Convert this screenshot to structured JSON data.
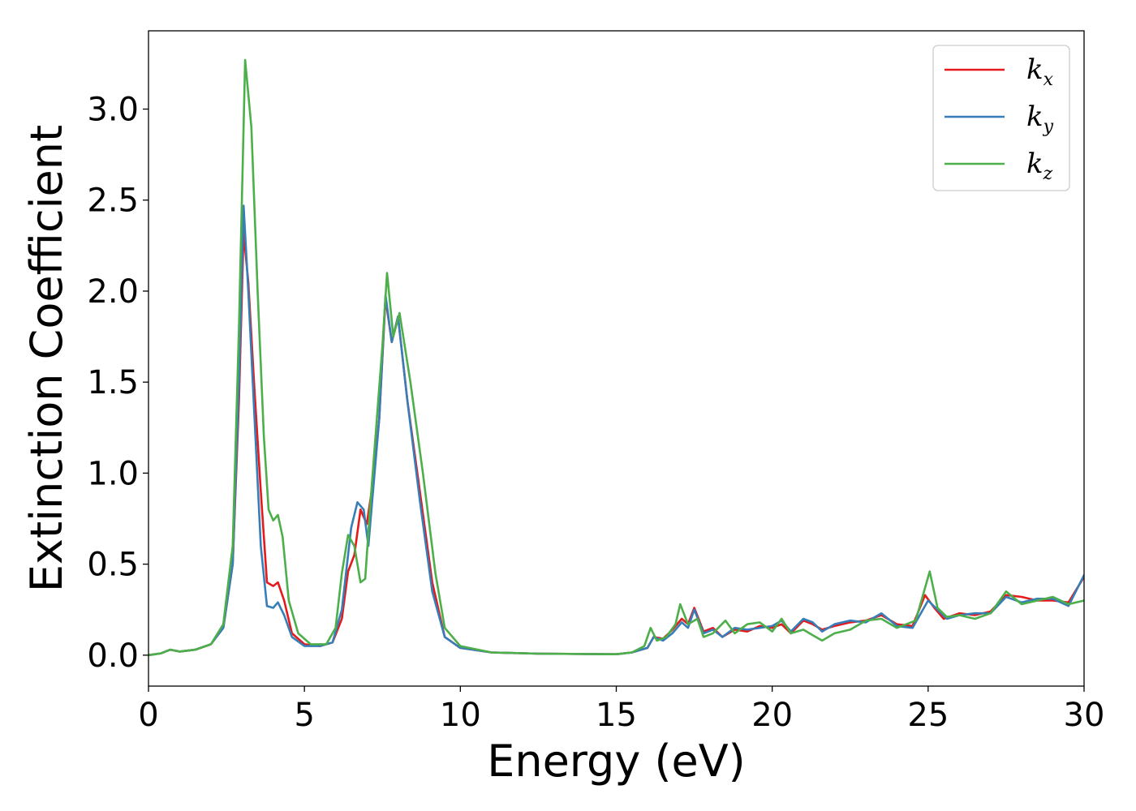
{
  "chart_data": {
    "type": "line",
    "xlabel": "Energy (eV)",
    "ylabel": "Extinction Coefficient",
    "xlim": [
      0,
      30
    ],
    "ylim": [
      -0.17,
      3.43
    ],
    "xticks": [
      "0",
      "5",
      "10",
      "15",
      "20",
      "25",
      "30"
    ],
    "yticks": [
      "0.0",
      "0.5",
      "1.0",
      "1.5",
      "2.0",
      "2.5",
      "3.0"
    ],
    "grid": false,
    "legend_placement": "top-right",
    "series": [
      {
        "name": "k",
        "subscript": "x",
        "color": "#e41a1c",
        "points": [
          [
            0,
            0.0
          ],
          [
            0.4,
            0.01
          ],
          [
            0.7,
            0.03
          ],
          [
            1.0,
            0.02
          ],
          [
            1.5,
            0.03
          ],
          [
            2.0,
            0.06
          ],
          [
            2.4,
            0.15
          ],
          [
            2.7,
            0.5
          ],
          [
            2.9,
            1.4
          ],
          [
            3.05,
            2.32
          ],
          [
            3.2,
            2.05
          ],
          [
            3.4,
            1.45
          ],
          [
            3.6,
            0.9
          ],
          [
            3.8,
            0.4
          ],
          [
            4.0,
            0.38
          ],
          [
            4.15,
            0.4
          ],
          [
            4.35,
            0.3
          ],
          [
            4.6,
            0.12
          ],
          [
            5.0,
            0.06
          ],
          [
            5.5,
            0.05
          ],
          [
            5.9,
            0.07
          ],
          [
            6.2,
            0.2
          ],
          [
            6.4,
            0.46
          ],
          [
            6.6,
            0.55
          ],
          [
            6.8,
            0.8
          ],
          [
            7.0,
            0.72
          ],
          [
            7.2,
            0.95
          ],
          [
            7.4,
            1.3
          ],
          [
            7.6,
            1.96
          ],
          [
            7.8,
            1.72
          ],
          [
            8.0,
            1.86
          ],
          [
            8.3,
            1.4
          ],
          [
            8.7,
            0.9
          ],
          [
            9.1,
            0.4
          ],
          [
            9.5,
            0.1
          ],
          [
            10.0,
            0.04
          ],
          [
            11.0,
            0.015
          ],
          [
            12.5,
            0.008
          ],
          [
            15.0,
            0.005
          ],
          [
            15.5,
            0.015
          ],
          [
            16.0,
            0.04
          ],
          [
            16.2,
            0.1
          ],
          [
            16.5,
            0.09
          ],
          [
            16.8,
            0.14
          ],
          [
            17.1,
            0.2
          ],
          [
            17.3,
            0.17
          ],
          [
            17.5,
            0.26
          ],
          [
            17.8,
            0.13
          ],
          [
            18.1,
            0.15
          ],
          [
            18.4,
            0.1
          ],
          [
            18.8,
            0.14
          ],
          [
            19.2,
            0.13
          ],
          [
            19.6,
            0.16
          ],
          [
            20.0,
            0.15
          ],
          [
            20.3,
            0.17
          ],
          [
            20.6,
            0.12
          ],
          [
            21.0,
            0.19
          ],
          [
            21.3,
            0.17
          ],
          [
            21.6,
            0.14
          ],
          [
            22.0,
            0.16
          ],
          [
            22.5,
            0.18
          ],
          [
            23.0,
            0.19
          ],
          [
            23.5,
            0.22
          ],
          [
            24.0,
            0.17
          ],
          [
            24.5,
            0.16
          ],
          [
            24.9,
            0.33
          ],
          [
            25.2,
            0.26
          ],
          [
            25.5,
            0.2
          ],
          [
            26.0,
            0.23
          ],
          [
            26.5,
            0.22
          ],
          [
            27.0,
            0.24
          ],
          [
            27.5,
            0.33
          ],
          [
            28.0,
            0.32
          ],
          [
            28.5,
            0.3
          ],
          [
            29.0,
            0.3
          ],
          [
            29.5,
            0.29
          ],
          [
            30.0,
            0.43
          ]
        ]
      },
      {
        "name": "k",
        "subscript": "y",
        "color": "#377eb8",
        "points": [
          [
            0,
            0.0
          ],
          [
            0.4,
            0.01
          ],
          [
            0.7,
            0.03
          ],
          [
            1.0,
            0.02
          ],
          [
            1.5,
            0.03
          ],
          [
            2.0,
            0.06
          ],
          [
            2.4,
            0.15
          ],
          [
            2.7,
            0.5
          ],
          [
            2.9,
            1.5
          ],
          [
            3.05,
            2.47
          ],
          [
            3.2,
            2.0
          ],
          [
            3.4,
            1.3
          ],
          [
            3.6,
            0.6
          ],
          [
            3.8,
            0.27
          ],
          [
            4.0,
            0.26
          ],
          [
            4.15,
            0.29
          ],
          [
            4.35,
            0.22
          ],
          [
            4.6,
            0.1
          ],
          [
            5.0,
            0.05
          ],
          [
            5.5,
            0.05
          ],
          [
            5.9,
            0.07
          ],
          [
            6.2,
            0.25
          ],
          [
            6.5,
            0.7
          ],
          [
            6.7,
            0.84
          ],
          [
            6.9,
            0.8
          ],
          [
            7.05,
            0.6
          ],
          [
            7.2,
            0.9
          ],
          [
            7.4,
            1.3
          ],
          [
            7.6,
            1.98
          ],
          [
            7.8,
            1.72
          ],
          [
            8.0,
            1.86
          ],
          [
            8.3,
            1.4
          ],
          [
            8.7,
            0.85
          ],
          [
            9.1,
            0.35
          ],
          [
            9.5,
            0.1
          ],
          [
            10.0,
            0.04
          ],
          [
            11.0,
            0.015
          ],
          [
            12.5,
            0.008
          ],
          [
            15.0,
            0.005
          ],
          [
            15.5,
            0.015
          ],
          [
            16.0,
            0.04
          ],
          [
            16.2,
            0.1
          ],
          [
            16.5,
            0.08
          ],
          [
            16.8,
            0.12
          ],
          [
            17.1,
            0.18
          ],
          [
            17.3,
            0.15
          ],
          [
            17.5,
            0.25
          ],
          [
            17.8,
            0.12
          ],
          [
            18.1,
            0.14
          ],
          [
            18.4,
            0.1
          ],
          [
            18.8,
            0.15
          ],
          [
            19.2,
            0.14
          ],
          [
            19.6,
            0.15
          ],
          [
            20.0,
            0.16
          ],
          [
            20.3,
            0.19
          ],
          [
            20.6,
            0.13
          ],
          [
            21.0,
            0.2
          ],
          [
            21.3,
            0.18
          ],
          [
            21.6,
            0.13
          ],
          [
            22.0,
            0.17
          ],
          [
            22.5,
            0.19
          ],
          [
            23.0,
            0.18
          ],
          [
            23.5,
            0.23
          ],
          [
            24.0,
            0.16
          ],
          [
            24.5,
            0.15
          ],
          [
            25.0,
            0.3
          ],
          [
            25.3,
            0.25
          ],
          [
            25.6,
            0.2
          ],
          [
            26.0,
            0.22
          ],
          [
            26.5,
            0.23
          ],
          [
            27.0,
            0.23
          ],
          [
            27.5,
            0.32
          ],
          [
            28.0,
            0.29
          ],
          [
            28.5,
            0.31
          ],
          [
            29.0,
            0.31
          ],
          [
            29.5,
            0.27
          ],
          [
            30.0,
            0.44
          ]
        ]
      },
      {
        "name": "k",
        "subscript": "z",
        "color": "#4daf4a",
        "points": [
          [
            0,
            0.0
          ],
          [
            0.4,
            0.01
          ],
          [
            0.7,
            0.03
          ],
          [
            1.0,
            0.02
          ],
          [
            1.5,
            0.03
          ],
          [
            2.0,
            0.06
          ],
          [
            2.4,
            0.17
          ],
          [
            2.7,
            0.6
          ],
          [
            2.9,
            1.8
          ],
          [
            3.1,
            3.27
          ],
          [
            3.3,
            2.9
          ],
          [
            3.5,
            2.0
          ],
          [
            3.7,
            1.2
          ],
          [
            3.85,
            0.8
          ],
          [
            4.0,
            0.74
          ],
          [
            4.15,
            0.77
          ],
          [
            4.3,
            0.65
          ],
          [
            4.5,
            0.3
          ],
          [
            4.8,
            0.12
          ],
          [
            5.2,
            0.06
          ],
          [
            5.7,
            0.06
          ],
          [
            6.0,
            0.15
          ],
          [
            6.2,
            0.45
          ],
          [
            6.4,
            0.66
          ],
          [
            6.6,
            0.6
          ],
          [
            6.8,
            0.4
          ],
          [
            6.95,
            0.42
          ],
          [
            7.1,
            0.8
          ],
          [
            7.3,
            1.25
          ],
          [
            7.5,
            1.7
          ],
          [
            7.65,
            2.1
          ],
          [
            7.85,
            1.75
          ],
          [
            8.05,
            1.88
          ],
          [
            8.4,
            1.5
          ],
          [
            8.8,
            1.0
          ],
          [
            9.2,
            0.45
          ],
          [
            9.5,
            0.15
          ],
          [
            10.0,
            0.05
          ],
          [
            11.0,
            0.015
          ],
          [
            12.5,
            0.008
          ],
          [
            15.0,
            0.005
          ],
          [
            15.5,
            0.015
          ],
          [
            15.9,
            0.05
          ],
          [
            16.1,
            0.15
          ],
          [
            16.3,
            0.08
          ],
          [
            16.6,
            0.1
          ],
          [
            16.9,
            0.17
          ],
          [
            17.05,
            0.28
          ],
          [
            17.3,
            0.17
          ],
          [
            17.6,
            0.2
          ],
          [
            17.8,
            0.1
          ],
          [
            18.1,
            0.12
          ],
          [
            18.5,
            0.19
          ],
          [
            18.8,
            0.12
          ],
          [
            19.2,
            0.17
          ],
          [
            19.6,
            0.18
          ],
          [
            20.0,
            0.13
          ],
          [
            20.3,
            0.2
          ],
          [
            20.6,
            0.12
          ],
          [
            21.0,
            0.14
          ],
          [
            21.3,
            0.11
          ],
          [
            21.6,
            0.08
          ],
          [
            22.0,
            0.12
          ],
          [
            22.5,
            0.14
          ],
          [
            23.0,
            0.19
          ],
          [
            23.5,
            0.2
          ],
          [
            24.0,
            0.15
          ],
          [
            24.6,
            0.19
          ],
          [
            25.05,
            0.46
          ],
          [
            25.3,
            0.26
          ],
          [
            25.6,
            0.21
          ],
          [
            26.0,
            0.22
          ],
          [
            26.5,
            0.2
          ],
          [
            27.0,
            0.23
          ],
          [
            27.5,
            0.35
          ],
          [
            28.0,
            0.28
          ],
          [
            28.5,
            0.3
          ],
          [
            29.0,
            0.32
          ],
          [
            29.5,
            0.28
          ],
          [
            30.0,
            0.3
          ]
        ]
      }
    ]
  }
}
